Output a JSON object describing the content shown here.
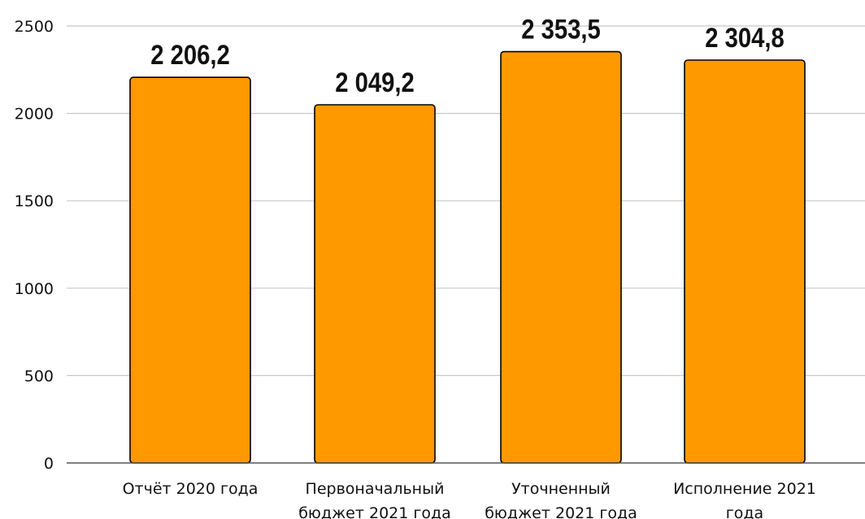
{
  "chart_data": {
    "type": "bar",
    "categories": [
      [
        "Отчёт 2020 года"
      ],
      [
        "Первоначальный",
        "бюджет 2021 года"
      ],
      [
        "Уточненный",
        "бюджет 2021 года"
      ],
      [
        "Исполнение 2021",
        "года"
      ]
    ],
    "values": [
      2206.2,
      2049.2,
      2353.5,
      2304.8
    ],
    "data_labels": [
      "2 206,2",
      "2 049,2",
      "2 353,5",
      "2 304,8"
    ],
    "y_ticks": [
      0,
      500,
      1000,
      1500,
      2000,
      2500
    ],
    "ylim": [
      0,
      2500
    ],
    "grid": true,
    "legend": "none",
    "colors": {
      "bar_fill": "#FF9900",
      "bar_stroke": "#000000",
      "grid": "#C8C8C8",
      "axis": "#555555"
    }
  }
}
